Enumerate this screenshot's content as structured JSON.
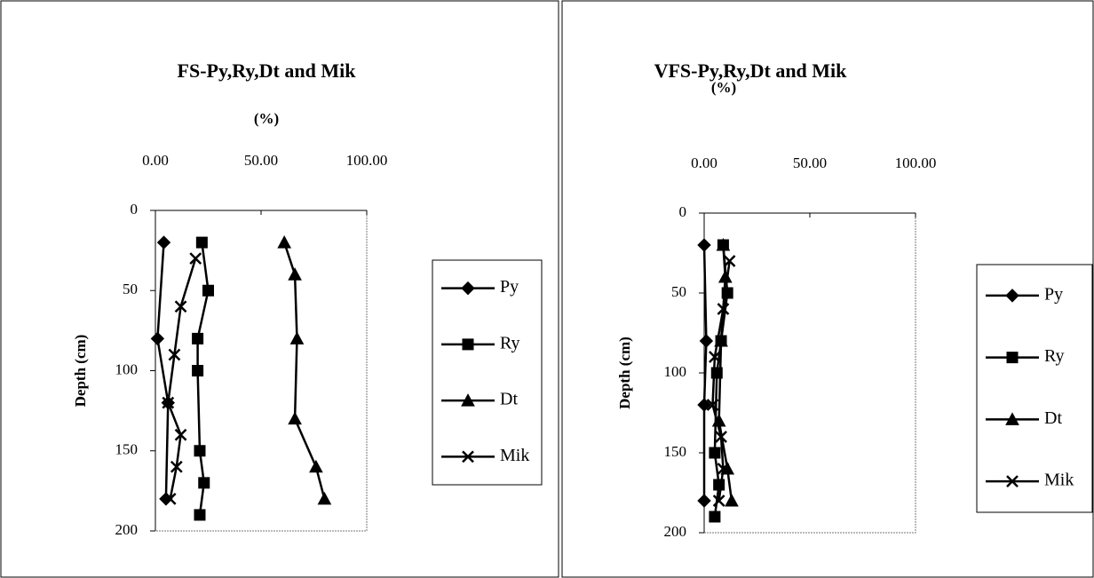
{
  "chart_data": [
    {
      "type": "line",
      "title": "FS-Py,Ry,Dt and Mik",
      "xlabel": "(%)",
      "ylabel": "Depth (cm)",
      "xlim": [
        0,
        100
      ],
      "xticks": [
        {
          "value": 0,
          "label": "0.00"
        },
        {
          "value": 50,
          "label": "50.00"
        },
        {
          "value": 100,
          "label": "100.00"
        }
      ],
      "ylim": [
        0,
        200
      ],
      "yticks": [
        0,
        50,
        100,
        150,
        200
      ],
      "y_inverted": true,
      "color": "#000000",
      "series": [
        {
          "name": "Py",
          "marker": "diamond",
          "x": [
            4,
            1,
            6,
            5
          ],
          "y": [
            20,
            80,
            120,
            180
          ]
        },
        {
          "name": "Ry",
          "marker": "square",
          "x": [
            22,
            25,
            20,
            20,
            21,
            23,
            21
          ],
          "y": [
            20,
            50,
            80,
            100,
            150,
            170,
            190
          ]
        },
        {
          "name": "Dt",
          "marker": "triangle",
          "x": [
            61,
            66,
            67,
            66,
            76,
            80
          ],
          "y": [
            20,
            40,
            80,
            130,
            160,
            180
          ]
        },
        {
          "name": "Mik",
          "marker": "x",
          "x": [
            19,
            12,
            9,
            6,
            12,
            10,
            7
          ],
          "y": [
            30,
            60,
            90,
            120,
            140,
            160,
            180
          ]
        }
      ]
    },
    {
      "type": "line",
      "title": "VFS-Py,Ry,Dt and Mik",
      "xlabel": "(%)",
      "ylabel": "Depth (cm)",
      "xlim": [
        0,
        100
      ],
      "xticks": [
        {
          "value": 0,
          "label": "0.00"
        },
        {
          "value": 50,
          "label": "50.00"
        },
        {
          "value": 100,
          "label": "100.00"
        }
      ],
      "ylim": [
        0,
        200
      ],
      "yticks": [
        0,
        50,
        100,
        150,
        200
      ],
      "y_inverted": true,
      "color": "#000000",
      "series": [
        {
          "name": "Py",
          "marker": "diamond",
          "x": [
            0,
            1,
            0,
            0
          ],
          "y": [
            20,
            80,
            120,
            180
          ]
        },
        {
          "name": "Ry",
          "marker": "square",
          "x": [
            9,
            11,
            8,
            6,
            5,
            7,
            5
          ],
          "y": [
            20,
            50,
            80,
            100,
            150,
            170,
            190
          ]
        },
        {
          "name": "Dt",
          "marker": "triangle",
          "x": [
            9,
            10,
            8,
            7,
            11,
            13
          ],
          "y": [
            20,
            40,
            80,
            130,
            160,
            180
          ]
        },
        {
          "name": "Mik",
          "marker": "x",
          "x": [
            12,
            9,
            5,
            4,
            8,
            9,
            7
          ],
          "y": [
            30,
            60,
            90,
            120,
            140,
            160,
            180
          ]
        }
      ]
    }
  ]
}
